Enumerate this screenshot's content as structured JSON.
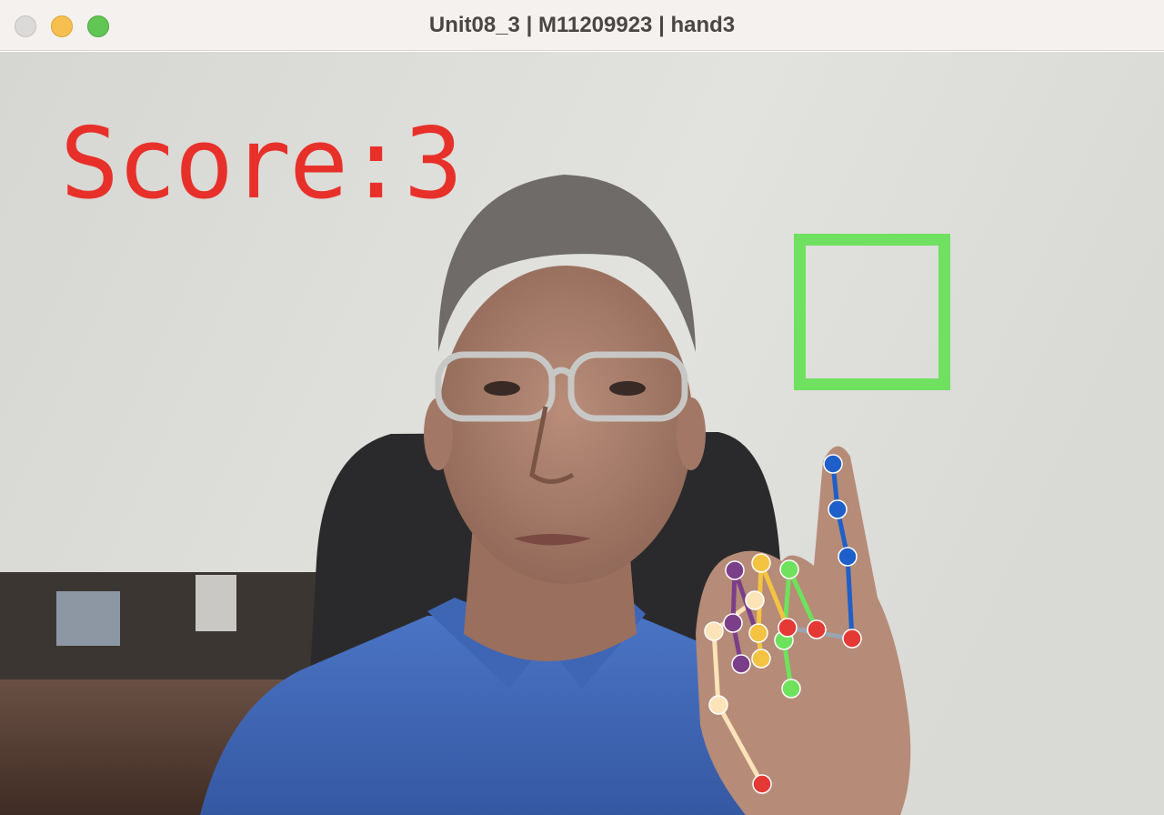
{
  "window": {
    "title": "Unit08_3 | M11209923 | hand3",
    "buttons": [
      "close",
      "minimize",
      "zoom"
    ]
  },
  "overlay": {
    "score_text": "Score:3",
    "score_color": "#e8302a",
    "target_box_color": "#6fe05f"
  },
  "camera_scene": {
    "subject": "person-with-glasses-in-blue-shirt",
    "hand_gesture": "index-finger-raised"
  },
  "landmark_colors": {
    "wrist": "#e53935",
    "thumb": "#fde3b8",
    "index": "#1f5fc9",
    "middle": "#f5c342",
    "ring": "#6ee25c",
    "pinky": "#7b3f8a",
    "palm": "#9aa3b0"
  }
}
